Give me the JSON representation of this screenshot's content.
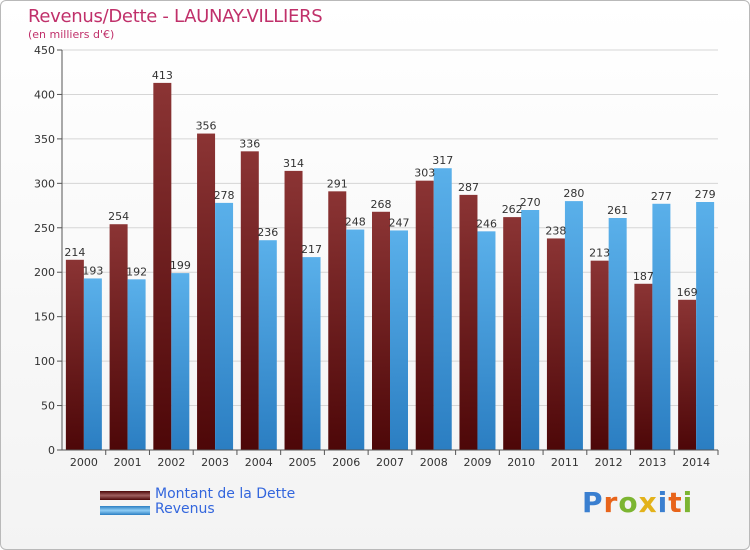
{
  "title": "Revenus/Dette - LAUNAY-VILLIERS",
  "subtitle": "(en milliers d'€)",
  "legend": {
    "dette": "Montant de la Dette",
    "revenus": "Revenus"
  },
  "logo": [
    "P",
    "r",
    "o",
    "x",
    "i",
    "t",
    "i"
  ],
  "colors": {
    "dette_dark": "#4d0708",
    "dette_light": "#8b3434",
    "revenus_dark": "#2b7ec2",
    "revenus_light": "#5ab0ea",
    "title": "#c0306a",
    "legend_text": "#3366dd"
  },
  "chart_data": {
    "type": "bar",
    "title": "Revenus/Dette - LAUNAY-VILLIERS",
    "ylabel": "(en milliers d'€)",
    "ylim": [
      0,
      450
    ],
    "yticks": [
      0,
      50,
      100,
      150,
      200,
      250,
      300,
      350,
      400,
      450
    ],
    "categories": [
      "2000",
      "2001",
      "2002",
      "2003",
      "2004",
      "2005",
      "2006",
      "2007",
      "2008",
      "2009",
      "2010",
      "2011",
      "2012",
      "2013",
      "2014"
    ],
    "series": [
      {
        "name": "Montant de la Dette",
        "values": [
          214,
          254,
          413,
          356,
          336,
          314,
          291,
          268,
          303,
          287,
          262,
          238,
          213,
          187,
          169
        ]
      },
      {
        "name": "Revenus",
        "values": [
          193,
          192,
          199,
          278,
          236,
          217,
          248,
          247,
          317,
          246,
          270,
          280,
          261,
          277,
          279
        ]
      }
    ]
  }
}
